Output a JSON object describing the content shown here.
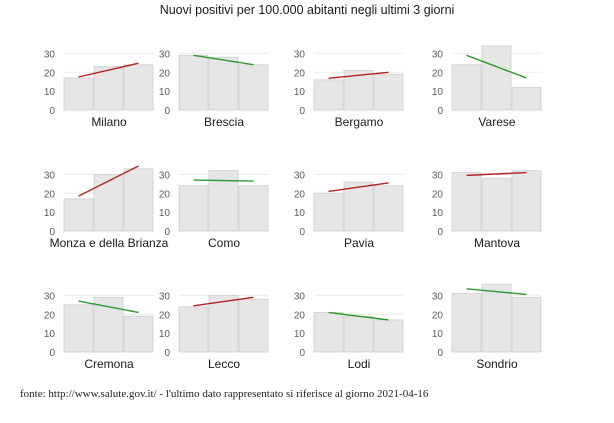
{
  "chart_data": {
    "type": "bar",
    "title": "Nuovi positivi per 100.000 abitanti negli ultimi 3 giorni",
    "ylim": [
      0,
      35
    ],
    "yticks": [
      0,
      10,
      20,
      30
    ],
    "grid": true,
    "colors": {
      "bar_fill": "#e6e6e6",
      "bar_stroke": "#cfcfcf",
      "trend_up": "#b22222",
      "trend_down": "#2e9a2e",
      "grid": "#ececec",
      "text": "#1a1a1a",
      "tick": "#5a5a5a"
    },
    "panels": [
      {
        "name": "Milano",
        "values": [
          17,
          23,
          24
        ],
        "trend": [
          17.5,
          24.8
        ],
        "direction": "up"
      },
      {
        "name": "Brescia",
        "values": [
          29,
          28,
          24
        ],
        "trend": [
          29.0,
          24.0
        ],
        "direction": "down"
      },
      {
        "name": "Bergamo",
        "values": [
          16,
          21,
          19
        ],
        "trend": [
          16.8,
          20.0
        ],
        "direction": "up"
      },
      {
        "name": "Varese",
        "values": [
          24,
          34,
          12
        ],
        "trend": [
          29.0,
          17.0
        ],
        "direction": "down"
      },
      {
        "name": "Monza e della Brianza",
        "values": [
          17,
          30,
          33
        ],
        "trend": [
          18.5,
          34.5
        ],
        "direction": "up"
      },
      {
        "name": "Como",
        "values": [
          24,
          32,
          24
        ],
        "trend": [
          27.0,
          26.5
        ],
        "direction": "down"
      },
      {
        "name": "Pavia",
        "values": [
          20,
          26,
          24
        ],
        "trend": [
          21.0,
          25.5
        ],
        "direction": "up"
      },
      {
        "name": "Mantova",
        "values": [
          31,
          28,
          32
        ],
        "trend": [
          29.5,
          31.0
        ],
        "direction": "up"
      },
      {
        "name": "Cremona",
        "values": [
          25,
          29,
          19
        ],
        "trend": [
          27.0,
          21.0
        ],
        "direction": "down"
      },
      {
        "name": "Lecco",
        "values": [
          24,
          30,
          28
        ],
        "trend": [
          24.5,
          29.0
        ],
        "direction": "up"
      },
      {
        "name": "Lodi",
        "values": [
          21,
          19,
          17
        ],
        "trend": [
          21.0,
          17.0
        ],
        "direction": "down"
      },
      {
        "name": "Sondrio",
        "values": [
          31,
          36,
          29
        ],
        "trend": [
          33.5,
          30.5
        ],
        "direction": "down"
      }
    ]
  },
  "source_note": "fonte: http://www.salute.gov.it/ - l'ultimo dato rappresentato si riferisce al giorno 2021-04-16"
}
